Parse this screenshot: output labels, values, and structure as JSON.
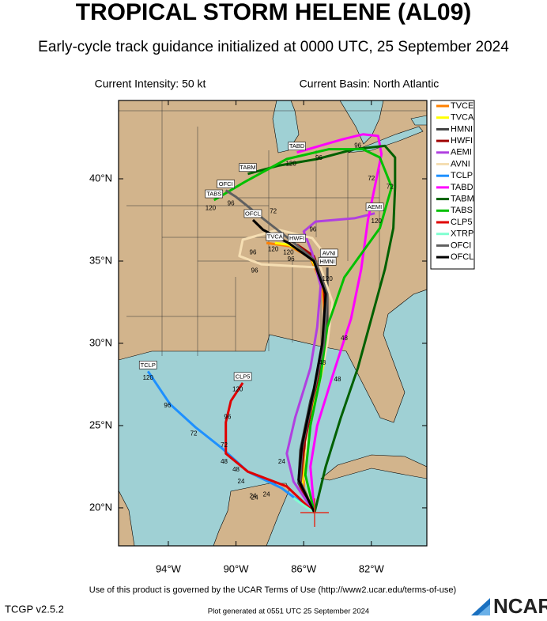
{
  "chart_data": {
    "type": "map",
    "title": "TROPICAL STORM HELENE (AL09)",
    "subtitle": "Early-cycle track guidance initialized at 0000 UTC, 25 September 2024",
    "intensity": "Current Intensity: 50 kt",
    "basin": "Current Basin: North Atlantic",
    "xlim": [
      -96.94,
      -78.72
    ],
    "ylim": [
      17.69,
      44.76
    ],
    "xticks": [
      {
        "value": -94,
        "label": "94°W"
      },
      {
        "value": -90,
        "label": "90°W"
      },
      {
        "value": -86,
        "label": "86°W"
      },
      {
        "value": -82,
        "label": "82°W"
      }
    ],
    "yticks": [
      {
        "value": 20,
        "label": "20°N"
      },
      {
        "value": 25,
        "label": "25°N"
      },
      {
        "value": 30,
        "label": "30°N"
      },
      {
        "value": 35,
        "label": "35°N"
      },
      {
        "value": 40,
        "label": "40°N"
      }
    ],
    "series": [
      {
        "name": "TVCE",
        "color": "#ff8000",
        "label_end": false,
        "lon": [
          -85.36,
          -86.0,
          -86.0,
          -85.5,
          -84.9,
          -84.7,
          -84.9,
          -85.6,
          -86.8,
          -88.2
        ],
        "lat": [
          19.7,
          21.2,
          23.0,
          26.0,
          28.5,
          31.0,
          33.5,
          35.2,
          35.9,
          36.1
        ]
      },
      {
        "name": "TVCA",
        "color": "#ffff00",
        "label_end": true,
        "lon": [
          -85.36,
          -86.1,
          -86.0,
          -85.4,
          -84.8,
          -84.6,
          -84.8,
          -85.6,
          -86.9,
          -87.7
        ],
        "lat": [
          19.7,
          21.3,
          23.2,
          26.2,
          28.8,
          31.2,
          33.6,
          35.3,
          36.0,
          36.1
        ]
      },
      {
        "name": "HMNI",
        "color": "#404040",
        "label_end": true,
        "lon": [
          -85.36,
          -86.3,
          -86.2,
          -85.6,
          -84.9,
          -84.6,
          -84.6,
          -84.6
        ],
        "lat": [
          19.7,
          21.5,
          23.5,
          26.5,
          29.0,
          31.5,
          33.5,
          34.6
        ]
      },
      {
        "name": "HWFI",
        "color": "#a00000",
        "label_end": true,
        "lon": [
          -85.36,
          -86.2,
          -86.0,
          -85.5,
          -84.9,
          -84.7,
          -84.8,
          -85.4,
          -86.4
        ],
        "lat": [
          19.7,
          21.3,
          23.4,
          26.4,
          29.0,
          31.3,
          33.6,
          35.3,
          36.0
        ]
      },
      {
        "name": "AEMI",
        "color": "#b040e0",
        "label_end": true,
        "lon": [
          -85.36,
          -86.6,
          -87.0,
          -86.5,
          -85.6,
          -85.2,
          -85.0,
          -85.5,
          -86.0,
          -85.3,
          -83.0,
          -81.8
        ],
        "lat": [
          19.7,
          21.6,
          23.3,
          25.5,
          28.5,
          31.0,
          33.5,
          35.5,
          36.8,
          37.4,
          37.6,
          37.9
        ]
      },
      {
        "name": "AVNI",
        "color": "#f5deb3",
        "label_end": true,
        "lon": [
          -85.36,
          -85.9,
          -85.8,
          -85.2,
          -84.6,
          -84.3,
          -85.0,
          -88.5,
          -89.8,
          -89.6,
          -87.5,
          -85.5,
          -84.5
        ],
        "lat": [
          19.7,
          21.8,
          24.0,
          27.0,
          30.0,
          32.5,
          34.6,
          34.8,
          35.3,
          36.3,
          36.9,
          36.4,
          35.1
        ]
      },
      {
        "name": "TCLP",
        "color": "#1e90ff",
        "label_end": true,
        "lon": [
          -85.36,
          -87.3,
          -89.3,
          -90.8,
          -92.4,
          -93.9,
          -95.2
        ],
        "lat": [
          19.7,
          21.2,
          22.2,
          23.6,
          24.9,
          26.3,
          28.3
        ]
      },
      {
        "name": "TABD",
        "color": "#ff00ff",
        "label_end": true,
        "lon": [
          -85.36,
          -85.6,
          -85.2,
          -84.3,
          -83.2,
          -82.6,
          -82.2,
          -81.8,
          -81.4,
          -81.6,
          -82.5,
          -83.7,
          -86.4
        ],
        "lat": [
          19.7,
          22.5,
          25.0,
          28.0,
          31.5,
          34.5,
          37.5,
          39.5,
          41.5,
          42.6,
          42.7,
          42.4,
          41.6
        ]
      },
      {
        "name": "TABM",
        "color": "#006000",
        "label_end": true,
        "lon": [
          -85.36,
          -84.7,
          -83.8,
          -82.8,
          -82.0,
          -81.2,
          -80.7,
          -80.6,
          -80.6,
          -81.2,
          -83.0,
          -85.2,
          -87.5,
          -89.3
        ],
        "lat": [
          19.7,
          22.5,
          25.5,
          28.5,
          31.5,
          34.5,
          37.0,
          39.5,
          41.3,
          42.0,
          41.8,
          41.2,
          40.8,
          40.3
        ]
      },
      {
        "name": "TABS",
        "color": "#00c000",
        "label_end": true,
        "lon": [
          -85.36,
          -85.9,
          -85.6,
          -85.0,
          -84.6,
          -83.6,
          -81.5,
          -80.8,
          -81.5,
          -82.5,
          -84.5,
          -87.0,
          -89.5,
          -91.3
        ],
        "lat": [
          19.7,
          22.0,
          25.0,
          28.0,
          31.0,
          34.0,
          37.0,
          39.5,
          41.3,
          41.8,
          41.8,
          41.2,
          39.8,
          38.7
        ]
      },
      {
        "name": "CLP5",
        "color": "#e00000",
        "label_end": true,
        "lon": [
          -85.36,
          -87.0,
          -89.3,
          -90.6,
          -90.6,
          -90.3,
          -89.6
        ],
        "lat": [
          19.7,
          21.3,
          22.2,
          23.3,
          25.2,
          26.5,
          27.6
        ]
      },
      {
        "name": "XTRP",
        "color": "#80ffd0",
        "label_end": false,
        "lon": [
          -85.36,
          -86.2,
          -86.6
        ],
        "lat": [
          19.7,
          20.3,
          20.6
        ]
      },
      {
        "name": "OFCI",
        "color": "#606060",
        "label_end": true,
        "lon": [
          -85.36,
          -86.2,
          -86.1,
          -85.4,
          -84.8,
          -84.6,
          -85.3,
          -86.8,
          -88.3,
          -90.0,
          -90.6
        ],
        "lat": [
          19.7,
          21.6,
          23.6,
          27.0,
          30.0,
          33.0,
          35.0,
          36.3,
          37.5,
          38.9,
          39.3
        ]
      },
      {
        "name": "OFCL",
        "color": "#000000",
        "label_end": true,
        "lon": [
          -85.36,
          -86.3,
          -86.1,
          -85.4,
          -84.9,
          -84.7,
          -85.4,
          -86.9,
          -88.4,
          -89.0
        ],
        "lat": [
          19.7,
          21.7,
          23.8,
          27.2,
          30.0,
          33.0,
          35.0,
          36.1,
          36.9,
          37.5
        ]
      }
    ],
    "time_labels": [
      {
        "tau": 120,
        "lon": -95.2,
        "lat": 27.9
      },
      {
        "tau": 96,
        "lon": -94.05,
        "lat": 26.2
      },
      {
        "tau": 72,
        "lon": -92.5,
        "lat": 24.5
      },
      {
        "tau": 48,
        "lon": -90.0,
        "lat": 22.3
      },
      {
        "tau": 24,
        "lon": -88.9,
        "lat": 20.6
      },
      {
        "tau": 120,
        "lon": -89.9,
        "lat": 27.2
      },
      {
        "tau": 96,
        "lon": -90.5,
        "lat": 25.5
      },
      {
        "tau": 72,
        "lon": -90.7,
        "lat": 23.8
      },
      {
        "tau": 48,
        "lon": -90.7,
        "lat": 22.8
      },
      {
        "tau": 24,
        "lon": -89.7,
        "lat": 21.6
      },
      {
        "tau": 120,
        "lon": -91.5,
        "lat": 38.2
      },
      {
        "tau": 96,
        "lon": -90.3,
        "lat": 38.5
      },
      {
        "tau": 120,
        "lon": -86.75,
        "lat": 40.9
      },
      {
        "tau": 96,
        "lon": -85.1,
        "lat": 41.25
      },
      {
        "tau": 96,
        "lon": -82.8,
        "lat": 42.0
      },
      {
        "tau": 72,
        "lon": -82.0,
        "lat": 40.0
      },
      {
        "tau": 120,
        "lon": -81.7,
        "lat": 37.4
      },
      {
        "tau": 72,
        "lon": -80.9,
        "lat": 39.5
      },
      {
        "tau": 96,
        "lon": -85.45,
        "lat": 36.9
      },
      {
        "tau": 96,
        "lon": -89.0,
        "lat": 35.5
      },
      {
        "tau": 120,
        "lon": -87.8,
        "lat": 35.7
      },
      {
        "tau": 96,
        "lon": -88.9,
        "lat": 34.4
      },
      {
        "tau": 120,
        "lon": -86.9,
        "lat": 35.5
      },
      {
        "tau": 96,
        "lon": -86.75,
        "lat": 35.1
      },
      {
        "tau": 120,
        "lon": -84.6,
        "lat": 33.9
      },
      {
        "tau": 72,
        "lon": -87.8,
        "lat": 38.0
      },
      {
        "tau": 48,
        "lon": -83.6,
        "lat": 30.3
      },
      {
        "tau": 48,
        "lon": -84.9,
        "lat": 28.8
      },
      {
        "tau": 48,
        "lon": -84.0,
        "lat": 27.8
      },
      {
        "tau": 24,
        "lon": -87.3,
        "lat": 22.8
      },
      {
        "tau": 24,
        "lon": -89.0,
        "lat": 20.7
      },
      {
        "tau": 24,
        "lon": -88.2,
        "lat": 20.8
      }
    ],
    "footer": "Use of this product is governed by the UCAR Terms of Use (http://www2.ucar.edu/terms-of-use)",
    "version": "TCGP v2.5.2",
    "generated": "Plot generated at 0551 UTC   25 September 2024",
    "logo": "NCAR"
  }
}
